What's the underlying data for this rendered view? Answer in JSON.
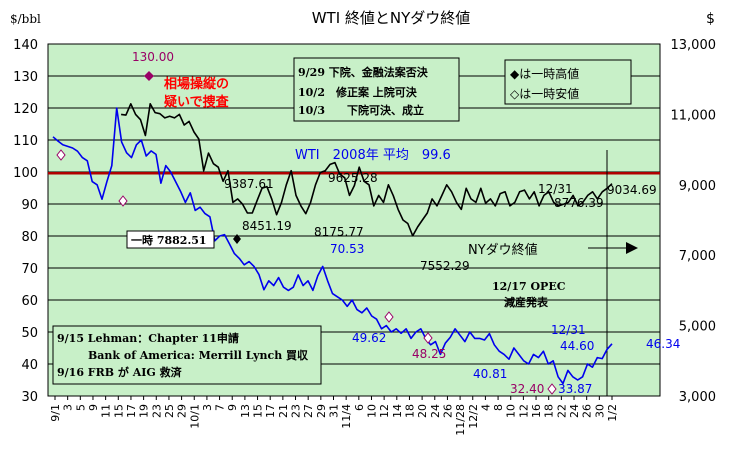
{
  "chart_data": {
    "type": "line",
    "title": "WTI 終値とNYダウ終値",
    "y_left_label": "$/bbl",
    "y_right_label": "$",
    "y_left_range": [
      30,
      140
    ],
    "y_right_range": [
      3000,
      13000
    ],
    "y_left_ticks": [
      "30",
      "40",
      "50",
      "60",
      "70",
      "80",
      "90",
      "100",
      "110",
      "120",
      "130",
      "140"
    ],
    "y_right_ticks": [
      "3,000",
      "5,000",
      "7,000",
      "9,000",
      "11,000",
      "13,000"
    ],
    "grid": true,
    "colors": {
      "plot_bg": "#c8f0c8",
      "wti": "#0000ee",
      "dow": "#000000",
      "avg_line": "#b00000",
      "marker": "#990066",
      "outer_bg": "#ffffff"
    },
    "x_ticks": [
      "9/1",
      "3",
      "5",
      "9",
      "11",
      "15",
      "17",
      "19",
      "23",
      "25",
      "29",
      "10/1",
      "3",
      "7",
      "9",
      "13",
      "15",
      "17",
      "21",
      "23",
      "27",
      "29",
      "31",
      "11/4",
      "6",
      "10",
      "12",
      "14",
      "18",
      "20",
      "24",
      "26",
      "11/28",
      "12/2",
      "4",
      "8",
      "10",
      "12",
      "16",
      "18",
      "22",
      "24",
      "26",
      "30",
      "1/2"
    ],
    "wti_series": {
      "name": "WTI",
      "values": [
        111,
        109.7,
        108.5,
        108,
        107.5,
        106.5,
        104.5,
        103.5,
        97,
        96,
        91.5,
        97,
        102,
        120,
        109.4,
        106,
        104.5,
        108.5,
        110,
        105,
        106.6,
        105.5,
        96.5,
        102,
        100,
        97,
        94,
        90.5,
        93.5,
        88,
        89,
        87,
        86,
        78.5,
        80,
        80.4,
        77.5,
        74.5,
        73,
        71,
        72,
        70.5,
        68,
        63.2,
        66,
        64.5,
        67,
        64,
        63,
        64,
        67.8,
        64.5,
        66,
        63,
        67.6,
        70.5,
        66,
        62,
        61,
        60,
        58,
        60,
        57,
        56,
        57.5,
        55,
        54,
        51,
        52,
        50,
        51,
        49.6,
        51,
        48,
        50,
        51,
        48,
        46,
        47,
        43,
        46.5,
        48.3,
        51,
        49,
        47,
        50,
        48,
        48,
        47.5,
        49.5,
        46,
        44,
        43,
        41.5,
        45,
        43,
        41,
        40,
        43,
        42,
        44,
        40,
        41,
        36,
        33.9,
        38,
        36,
        35,
        36,
        40,
        39,
        42,
        41.7,
        44.6,
        46.3
      ],
      "labels": {
        "peak": "130.00",
        "mid": "70.53",
        "nov": "49.62",
        "dec": "40.81",
        "low": "33.87",
        "dec31": "44.60",
        "last": "46.34",
        "nov_low": "48.25",
        "dec_low": "32.40"
      }
    },
    "dow_series": {
      "name": "NYダウ",
      "values": [
        null,
        null,
        null,
        null,
        null,
        null,
        null,
        null,
        null,
        null,
        null,
        null,
        null,
        null,
        11000,
        10980,
        11300,
        11000,
        10850,
        10400,
        11300,
        11050,
        11020,
        10900,
        10950,
        10900,
        11000,
        10700,
        10800,
        10500,
        10300,
        9400,
        9900,
        9600,
        9500,
        9100,
        9400,
        8500,
        8600,
        8450,
        8200,
        8200,
        8560,
        8900,
        8950,
        8600,
        8150,
        8500,
        9000,
        9400,
        8700,
        8400,
        8180,
        8500,
        9000,
        9350,
        9400,
        9580,
        9630,
        9300,
        9200,
        8700,
        8980,
        9500,
        9100,
        9000,
        8400,
        8700,
        8500,
        9000,
        8690,
        8300,
        8000,
        7900,
        7550,
        7800,
        8000,
        8200,
        8600,
        8400,
        8700,
        9000,
        8800,
        8500,
        8300,
        8900,
        8600,
        8500,
        8900,
        8480,
        8600,
        8400,
        8750,
        8800,
        8400,
        8500,
        8800,
        8850,
        8600,
        8800,
        8400,
        8700,
        8800,
        8500,
        8400,
        8450,
        8500,
        8700,
        8400,
        8500,
        8700,
        8800,
        8600,
        8800,
        8900,
        9030
      ],
      "labels": {
        "a": "9387.61",
        "b": "8451.19",
        "c": "8175.77",
        "d": "9625.28",
        "e": "7552.29",
        "f": "8776.39",
        "last": "9034.69",
        "d1231": "12/31",
        "low_box": "一時 7882.51"
      }
    },
    "avg_line": {
      "value": 99.6,
      "label": "WTI　2008年 平均　99.6"
    },
    "peak_marker_value": 130.0,
    "low_marker_value": 32.4
  },
  "annotations": {
    "suspect": [
      "相場操縦の",
      "疑いで捜査"
    ],
    "event_box": [
      "9/29 下院、金融法案否決",
      "10/2　修正案 上院可決",
      "10/3　　下院可決、成立"
    ],
    "legend_box": [
      "◆は一時高値",
      "◇は一時安値"
    ],
    "lehman_box": [
      "9/15 Lehman：Chapter 11申請",
      "Bank of America: Merrill Lynch 買収",
      "9/16 FRB が AIG 救済"
    ],
    "dow_label": "NYダウ終値",
    "opec": [
      "12/17 OPEC",
      "減産発表"
    ],
    "dec31_wti": "12/31"
  }
}
